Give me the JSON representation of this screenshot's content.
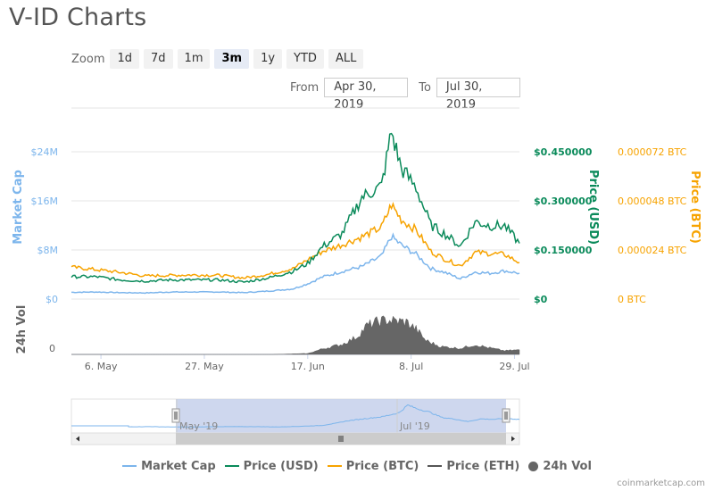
{
  "page": {
    "title": "V-ID Charts"
  },
  "zoom": {
    "label": "Zoom",
    "buttons": [
      "1d",
      "7d",
      "1m",
      "3m",
      "1y",
      "YTD",
      "ALL"
    ],
    "active": "3m"
  },
  "range": {
    "from_label": "From",
    "from": "Apr 30, 2019",
    "to_label": "To",
    "to": "Jul 30, 2019"
  },
  "colors": {
    "market_cap": "#7cb5ec",
    "price_usd": "#0a8a5a",
    "price_btc": "#f7a300",
    "price_eth": "#555555",
    "volume": "#666666",
    "navigator_fill": "#c9d3ec"
  },
  "credit": "coinmarketcap.com",
  "chart_data": {
    "type": "line",
    "x_start": "2019-04-30",
    "x_end": "2019-07-30",
    "x_ticks": [
      "6. May",
      "27. May",
      "17. Jun",
      "8. Jul",
      "29. Jul"
    ],
    "x_tick_dates": [
      "2019-05-06",
      "2019-05-27",
      "2019-06-17",
      "2019-07-08",
      "2019-07-29"
    ],
    "axes": {
      "market_cap": {
        "label": "Market Cap",
        "ticks": [
          "$0",
          "$8M",
          "$16M",
          "$24M"
        ],
        "range": [
          0,
          24000000
        ]
      },
      "price_usd": {
        "label": "Price (USD)",
        "ticks": [
          "$0",
          "$0.150000",
          "$0.300000",
          "$0.450000"
        ],
        "range": [
          0,
          0.45
        ]
      },
      "price_btc": {
        "label": "Price (BTC)",
        "ticks": [
          "0 BTC",
          "0.000024 BTC",
          "0.000048 BTC",
          "0.000072 BTC"
        ],
        "range": [
          0,
          7.2e-05
        ]
      },
      "volume": {
        "label": "24h Vol",
        "ticks": [
          "0"
        ]
      }
    },
    "navigator": {
      "labels": [
        "May '19",
        "Jul '19"
      ]
    },
    "series": [
      {
        "name": "Market Cap",
        "unit": "USD",
        "points": [
          [
            "2019-04-30",
            1100000
          ],
          [
            "2019-05-05",
            1150000
          ],
          [
            "2019-05-10",
            1050000
          ],
          [
            "2019-05-15",
            1000000
          ],
          [
            "2019-05-20",
            1150000
          ],
          [
            "2019-05-25",
            1150000
          ],
          [
            "2019-05-30",
            1150000
          ],
          [
            "2019-06-04",
            1050000
          ],
          [
            "2019-06-09",
            1300000
          ],
          [
            "2019-06-14",
            1650000
          ],
          [
            "2019-06-17",
            2500000
          ],
          [
            "2019-06-20",
            3600000
          ],
          [
            "2019-06-24",
            4500000
          ],
          [
            "2019-06-28",
            5300000
          ],
          [
            "2019-07-02",
            7000000
          ],
          [
            "2019-07-04",
            10200000
          ],
          [
            "2019-07-06",
            8800000
          ],
          [
            "2019-07-09",
            7300000
          ],
          [
            "2019-07-12",
            5000000
          ],
          [
            "2019-07-15",
            4300000
          ],
          [
            "2019-07-18",
            3300000
          ],
          [
            "2019-07-21",
            4400000
          ],
          [
            "2019-07-24",
            4200000
          ],
          [
            "2019-07-27",
            4600000
          ],
          [
            "2019-07-30",
            4200000
          ]
        ]
      },
      {
        "name": "Price (USD)",
        "unit": "USD",
        "points": [
          [
            "2019-04-30",
            0.0683
          ],
          [
            "2019-05-05",
            0.0683
          ],
          [
            "2019-05-10",
            0.0585
          ],
          [
            "2019-05-15",
            0.0548
          ],
          [
            "2019-05-20",
            0.0585
          ],
          [
            "2019-05-25",
            0.0585
          ],
          [
            "2019-05-30",
            0.0585
          ],
          [
            "2019-06-04",
            0.0518
          ],
          [
            "2019-06-09",
            0.0645
          ],
          [
            "2019-06-14",
            0.0848
          ],
          [
            "2019-06-17",
            0.1088
          ],
          [
            "2019-06-20",
            0.1598
          ],
          [
            "2019-06-24",
            0.2003
          ],
          [
            "2019-06-28",
            0.3113
          ],
          [
            "2019-07-02",
            0.345
          ],
          [
            "2019-07-04",
            0.5115
          ],
          [
            "2019-07-06",
            0.3998
          ],
          [
            "2019-07-09",
            0.3405
          ],
          [
            "2019-07-12",
            0.2258
          ],
          [
            "2019-07-15",
            0.1973
          ],
          [
            "2019-07-18",
            0.1613
          ],
          [
            "2019-07-21",
            0.2363
          ],
          [
            "2019-07-24",
            0.2243
          ],
          [
            "2019-07-27",
            0.2235
          ],
          [
            "2019-07-30",
            0.1703
          ]
        ]
      },
      {
        "name": "Price (BTC)",
        "unit": "BTC",
        "points": [
          [
            "2019-04-30",
            1.56e-05
          ],
          [
            "2019-05-05",
            1.44e-05
          ],
          [
            "2019-05-10",
            1.3e-05
          ],
          [
            "2019-05-15",
            1.13e-05
          ],
          [
            "2019-05-20",
            1.16e-05
          ],
          [
            "2019-05-25",
            1.18e-05
          ],
          [
            "2019-05-30",
            1.16e-05
          ],
          [
            "2019-06-04",
            1.03e-05
          ],
          [
            "2019-06-09",
            1.21e-05
          ],
          [
            "2019-06-14",
            1.49e-05
          ],
          [
            "2019-06-17",
            1.92e-05
          ],
          [
            "2019-06-20",
            2.33e-05
          ],
          [
            "2019-06-24",
            2.66e-05
          ],
          [
            "2019-06-28",
            3.04e-05
          ],
          [
            "2019-07-02",
            3.51e-05
          ],
          [
            "2019-07-04",
            4.61e-05
          ],
          [
            "2019-07-06",
            3.89e-05
          ],
          [
            "2019-07-09",
            3.38e-05
          ],
          [
            "2019-07-12",
            2.33e-05
          ],
          [
            "2019-07-15",
            1.93e-05
          ],
          [
            "2019-07-18",
            1.63e-05
          ],
          [
            "2019-07-21",
            2.28e-05
          ],
          [
            "2019-07-24",
            2.23e-05
          ],
          [
            "2019-07-27",
            2.18e-05
          ],
          [
            "2019-07-30",
            1.78e-05
          ]
        ]
      },
      {
        "name": "Price (ETH)",
        "unit": "ETH",
        "points": []
      },
      {
        "name": "24h Vol",
        "unit": "USD",
        "points": [
          [
            "2019-04-30",
            0
          ],
          [
            "2019-05-20",
            0
          ],
          [
            "2019-06-10",
            0
          ],
          [
            "2019-06-17",
            0.02
          ],
          [
            "2019-06-20",
            0.12
          ],
          [
            "2019-06-24",
            0.22
          ],
          [
            "2019-06-27",
            0.38
          ],
          [
            "2019-06-29",
            0.62
          ],
          [
            "2019-07-01",
            0.7
          ],
          [
            "2019-07-03",
            0.74
          ],
          [
            "2019-07-05",
            0.72
          ],
          [
            "2019-07-07",
            0.7
          ],
          [
            "2019-07-09",
            0.55
          ],
          [
            "2019-07-11",
            0.3
          ],
          [
            "2019-07-14",
            0.17
          ],
          [
            "2019-07-18",
            0.13
          ],
          [
            "2019-07-21",
            0.21
          ],
          [
            "2019-07-24",
            0.14
          ],
          [
            "2019-07-27",
            0.08
          ],
          [
            "2019-07-30",
            0.1
          ]
        ]
      }
    ]
  },
  "legend": [
    "Market Cap",
    "Price (USD)",
    "Price (BTC)",
    "Price (ETH)",
    "24h Vol"
  ]
}
